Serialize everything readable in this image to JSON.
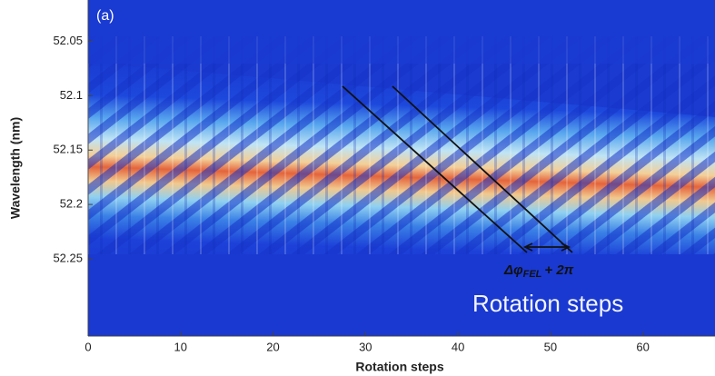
{
  "chart_data": {
    "type": "heatmap",
    "panel_label": "(a)",
    "xlabel": "Rotation steps",
    "ylabel": "Wavelength (nm)",
    "xlim": [
      0,
      67.8
    ],
    "xticks": [
      0,
      10,
      20,
      30,
      40,
      50,
      60
    ],
    "ylim": [
      52.321,
      52.012
    ],
    "yticks": [
      52.05,
      52.1,
      52.15,
      52.2,
      52.25
    ],
    "annotation": {
      "symbol": "Δφ",
      "subscript": "FEL",
      "suffix": "+ 2π"
    },
    "overlay_text": "Rotation steps"
  }
}
